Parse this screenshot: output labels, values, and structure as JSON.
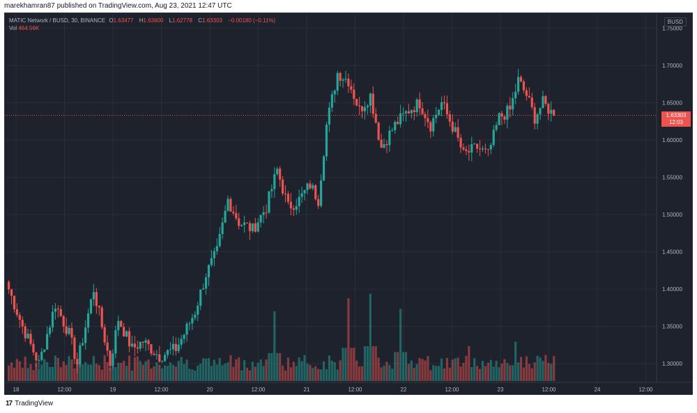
{
  "header": {
    "publisher_line": "marekhamran87 published on TradingView.com, Aug 23, 2021 12:47 UTC"
  },
  "legend": {
    "symbol": "MATIC Network / BUSD, 30, BINANCE",
    "open_label": "O",
    "open": "1.63477",
    "high_label": "H",
    "high": "1.63600",
    "low_label": "L",
    "low": "1.62778",
    "close_label": "C",
    "close": "1.63303",
    "change": "−0.00180 (−0.11%)",
    "volume_label": "Vol",
    "volume": "464.56K"
  },
  "price_axis": {
    "currency": "BUSD",
    "labels": [
      "1.75000",
      "1.70000",
      "1.65000",
      "1.60000",
      "1.55000",
      "1.50000",
      "1.45000",
      "1.40000",
      "1.35000",
      "1.30000"
    ],
    "last_price": "1.63303",
    "countdown": "12:03"
  },
  "time_axis": {
    "labels": [
      "18",
      "12:00",
      "19",
      "12:00",
      "20",
      "12:00",
      "21",
      "12:00",
      "22",
      "12:00",
      "23",
      "12:00",
      "24",
      "12:00"
    ]
  },
  "footer": {
    "brand": "TradingView",
    "logo_glyph": "17"
  },
  "colors": {
    "up": "#26a69a",
    "down": "#ef5350",
    "background": "#1e222d",
    "grid": "#2a2e39",
    "text": "#b2b5be"
  },
  "chart_data": {
    "type": "candlestick",
    "symbol": "MATIC/BUSD",
    "interval": "30",
    "x_range": [
      "Aug 18",
      "Aug 24 12:00"
    ],
    "ylim": [
      1.275,
      1.77
    ],
    "grid": true,
    "legend_position": "top-left",
    "anchors": [
      {
        "t": 0,
        "p": 1.4
      },
      {
        "t": 5,
        "p": 1.35
      },
      {
        "t": 11,
        "p": 1.3
      },
      {
        "t": 17,
        "p": 1.38
      },
      {
        "t": 22,
        "p": 1.34
      },
      {
        "t": 25,
        "p": 1.3
      },
      {
        "t": 31,
        "p": 1.4
      },
      {
        "t": 37,
        "p": 1.3
      },
      {
        "t": 40,
        "p": 1.36
      },
      {
        "t": 45,
        "p": 1.32
      },
      {
        "t": 49,
        "p": 1.33
      },
      {
        "t": 55,
        "p": 1.31
      },
      {
        "t": 61,
        "p": 1.32
      },
      {
        "t": 64,
        "p": 1.34
      },
      {
        "t": 68,
        "p": 1.37
      },
      {
        "t": 72,
        "p": 1.42
      },
      {
        "t": 76,
        "p": 1.45
      },
      {
        "t": 80,
        "p": 1.52
      },
      {
        "t": 84,
        "p": 1.49
      },
      {
        "t": 89,
        "p": 1.48
      },
      {
        "t": 94,
        "p": 1.51
      },
      {
        "t": 98,
        "p": 1.56
      },
      {
        "t": 102,
        "p": 1.51
      },
      {
        "t": 106,
        "p": 1.52
      },
      {
        "t": 110,
        "p": 1.54
      },
      {
        "t": 113,
        "p": 1.52
      },
      {
        "t": 116,
        "p": 1.62
      },
      {
        "t": 120,
        "p": 1.69
      },
      {
        "t": 124,
        "p": 1.68
      },
      {
        "t": 128,
        "p": 1.64
      },
      {
        "t": 132,
        "p": 1.66
      },
      {
        "t": 136,
        "p": 1.59
      },
      {
        "t": 141,
        "p": 1.62
      },
      {
        "t": 146,
        "p": 1.64
      },
      {
        "t": 150,
        "p": 1.65
      },
      {
        "t": 154,
        "p": 1.62
      },
      {
        "t": 158,
        "p": 1.65
      },
      {
        "t": 163,
        "p": 1.61
      },
      {
        "t": 166,
        "p": 1.58
      },
      {
        "t": 171,
        "p": 1.59
      },
      {
        "t": 175,
        "p": 1.58
      },
      {
        "t": 179,
        "p": 1.63
      },
      {
        "t": 183,
        "p": 1.64
      },
      {
        "t": 186,
        "p": 1.68
      },
      {
        "t": 189,
        "p": 1.66
      },
      {
        "t": 192,
        "p": 1.63
      },
      {
        "t": 195,
        "p": 1.65
      },
      {
        "t": 199,
        "p": 1.633
      }
    ],
    "volume_peaks": [
      {
        "t": 132,
        "v": 1.0
      },
      {
        "t": 124,
        "v": 0.95
      },
      {
        "t": 143,
        "v": 0.83
      },
      {
        "t": 97,
        "v": 0.8
      },
      {
        "t": 168,
        "v": 0.4
      },
      {
        "t": 185,
        "v": 0.45
      },
      {
        "t": 196,
        "v": 0.3
      }
    ]
  }
}
